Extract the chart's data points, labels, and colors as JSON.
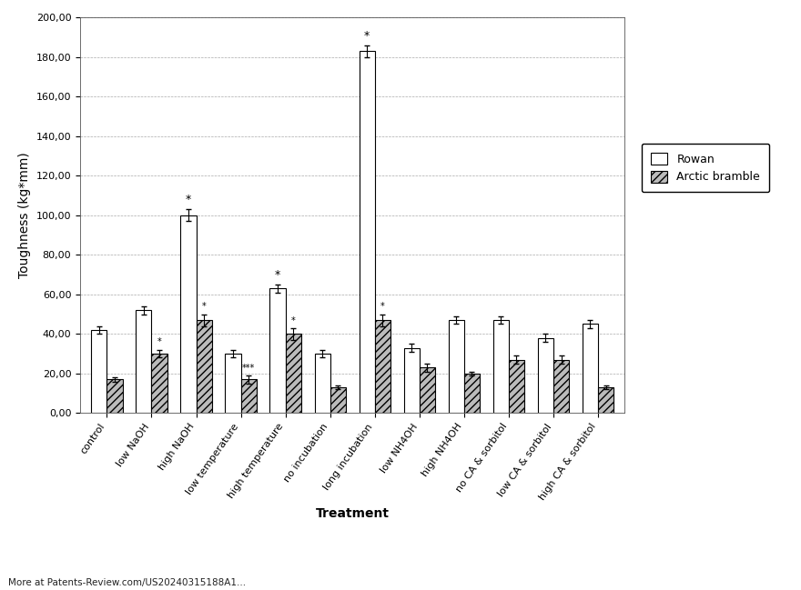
{
  "categories": [
    "control",
    "low NaOH",
    "high NaOH",
    "low temperature",
    "high temperature",
    "no incubation",
    "long incubation",
    "low NH4OH",
    "high NH4OH",
    "no CA & sorbitol",
    "low CA & sorbitol",
    "high CA & sorbitol"
  ],
  "rowan": [
    42,
    52,
    100,
    30,
    63,
    30,
    183,
    33,
    47,
    47,
    38,
    45
  ],
  "arctic": [
    17,
    30,
    47,
    17,
    40,
    13,
    47,
    23,
    20,
    27,
    27,
    13
  ],
  "rowan_err": [
    2,
    2,
    3,
    2,
    2,
    2,
    3,
    2,
    2,
    2,
    2,
    2
  ],
  "arctic_err": [
    1,
    2,
    3,
    2,
    3,
    1,
    3,
    2,
    1,
    2,
    2,
    1
  ],
  "rowan_sig_label": [
    "",
    "",
    "*",
    "",
    "*",
    "",
    "*",
    "",
    "",
    "",
    "",
    ""
  ],
  "arctic_sig_label": [
    "",
    "*",
    "*",
    "***",
    "*",
    "",
    "*",
    "",
    "",
    "",
    "",
    ""
  ],
  "ylabel": "Toughness (kg*mm)",
  "xlabel": "Treatment",
  "ylim": [
    0,
    200
  ],
  "yticks": [
    0,
    20,
    40,
    60,
    80,
    100,
    120,
    140,
    160,
    180,
    200
  ],
  "ytick_labels": [
    "0,00",
    "20,00",
    "40,00",
    "60,00",
    "80,00",
    "100,00",
    "120,00",
    "140,00",
    "160,00",
    "180,00",
    "200,00"
  ],
  "legend_rowan": "Rowan",
  "legend_arctic": "Arctic bramble",
  "background_color": "#ffffff",
  "bar_color_rowan": "#ffffff",
  "bar_edge_color": "#000000",
  "footer_text": "More at Patents-Review.com/US20240315188A1..."
}
